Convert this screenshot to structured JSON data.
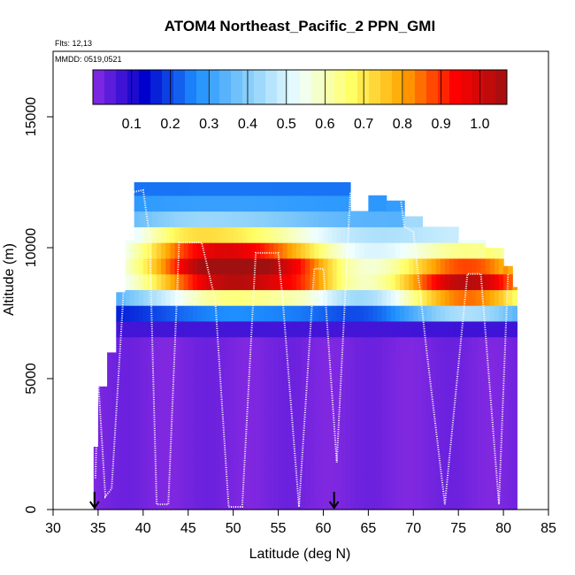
{
  "chart_data": {
    "type": "heatmap",
    "title": "ATOM4 Northeast_Pacific_2 PPN_GMI",
    "flights_label": "Flts: 12,13",
    "mmdd_label": "MMDD: 0519,0521",
    "xlabel": "Latitude (deg N)",
    "ylabel": "Altitude (m)",
    "xlim": [
      30,
      85
    ],
    "ylim": [
      0,
      17500
    ],
    "x_ticks": [
      30,
      35,
      40,
      45,
      50,
      55,
      60,
      65,
      70,
      75,
      80,
      85
    ],
    "y_ticks": [
      0,
      5000,
      10000,
      15000
    ],
    "colorbar": {
      "range": [
        0.0,
        1.07
      ],
      "tick_values": [
        0.1,
        0.2,
        0.3,
        0.4,
        0.5,
        0.6,
        0.7,
        0.8,
        0.9,
        1.0
      ],
      "tick_labels": [
        "0.1",
        "0.2",
        "0.3",
        "0.4",
        "0.5",
        "0.6",
        "0.7",
        "0.8",
        "0.9",
        "1.0"
      ],
      "colors": [
        "#8a2be2",
        "#0000cd",
        "#1e90ff",
        "#87cefa",
        "#f0ffff",
        "#ffff66",
        "#ffa500",
        "#ff0000",
        "#a01010"
      ]
    },
    "cell_width_deg": 0.5,
    "cell_height_m": 600,
    "column_extents": [
      {
        "x0": 34.5,
        "x1": 35.0,
        "top": 2400
      },
      {
        "x0": 35.0,
        "x1": 36.0,
        "top": 4700
      },
      {
        "x0": 36.0,
        "x1": 37.0,
        "top": 6000
      },
      {
        "x0": 37.0,
        "x1": 38.0,
        "top": 8300
      },
      {
        "x0": 38.0,
        "x1": 39.0,
        "top": 10300
      },
      {
        "x0": 39.0,
        "x1": 40.0,
        "top": 12500
      },
      {
        "x0": 40.0,
        "x1": 63.0,
        "top": 12500
      },
      {
        "x0": 63.0,
        "x1": 65.0,
        "top": 11400
      },
      {
        "x0": 65.0,
        "x1": 67.0,
        "top": 12000
      },
      {
        "x0": 67.0,
        "x1": 69.0,
        "top": 11800
      },
      {
        "x0": 69.0,
        "x1": 71.0,
        "top": 11200
      },
      {
        "x0": 71.0,
        "x1": 75.0,
        "top": 10800
      },
      {
        "x0": 75.0,
        "x1": 78.0,
        "top": 10300
      },
      {
        "x0": 78.0,
        "x1": 80.0,
        "top": 10000
      },
      {
        "x0": 80.0,
        "x1": 81.0,
        "top": 9300
      },
      {
        "x0": 81.0,
        "x1": 81.5,
        "top": 8500
      }
    ],
    "anomaly_features": [
      {
        "lat": 50.0,
        "alt": 9200,
        "sigma_lat": 7.0,
        "sigma_alt": 900,
        "amplitude": 0.75
      },
      {
        "lat": 58.5,
        "alt": 8700,
        "sigma_lat": 3.0,
        "sigma_alt": 700,
        "amplitude": 0.15
      },
      {
        "lat": 44.0,
        "alt": 10300,
        "sigma_lat": 3.5,
        "sigma_alt": 500,
        "amplitude": 0.1
      },
      {
        "lat": 76.0,
        "alt": 8600,
        "sigma_lat": 6.0,
        "sigma_alt": 900,
        "amplitude": 0.65
      }
    ],
    "flight_track": [
      {
        "lat": 34.7,
        "alt": 1200
      },
      {
        "lat": 35.0,
        "alt": 5000
      },
      {
        "lat": 35.8,
        "alt": 500
      },
      {
        "lat": 36.5,
        "alt": 800
      },
      {
        "lat": 38.5,
        "alt": 12100
      },
      {
        "lat": 40.0,
        "alt": 12200
      },
      {
        "lat": 40.7,
        "alt": 10500
      },
      {
        "lat": 41.5,
        "alt": 200
      },
      {
        "lat": 42.8,
        "alt": 200
      },
      {
        "lat": 44.0,
        "alt": 10200
      },
      {
        "lat": 46.5,
        "alt": 10200
      },
      {
        "lat": 48.0,
        "alt": 8000
      },
      {
        "lat": 49.5,
        "alt": 100
      },
      {
        "lat": 51.0,
        "alt": 100
      },
      {
        "lat": 52.5,
        "alt": 9800
      },
      {
        "lat": 55.0,
        "alt": 9800
      },
      {
        "lat": 55.5,
        "alt": 8000
      },
      {
        "lat": 57.3,
        "alt": 100
      },
      {
        "lat": 59.0,
        "alt": 9200
      },
      {
        "lat": 60.0,
        "alt": 9200
      },
      {
        "lat": 61.5,
        "alt": 1800
      },
      {
        "lat": 63.0,
        "alt": 12100
      },
      {
        "lat": 68.5,
        "alt": 12100
      },
      {
        "lat": 69.0,
        "alt": 10800
      },
      {
        "lat": 70.0,
        "alt": 10600
      },
      {
        "lat": 71.5,
        "alt": 6000
      },
      {
        "lat": 73.5,
        "alt": 200
      },
      {
        "lat": 76.0,
        "alt": 9000
      },
      {
        "lat": 77.5,
        "alt": 9000
      },
      {
        "lat": 79.5,
        "alt": 200
      },
      {
        "lat": 80.5,
        "alt": 9000
      }
    ],
    "arrows": [
      {
        "lat": 34.6
      },
      {
        "lat": 61.2
      }
    ]
  }
}
